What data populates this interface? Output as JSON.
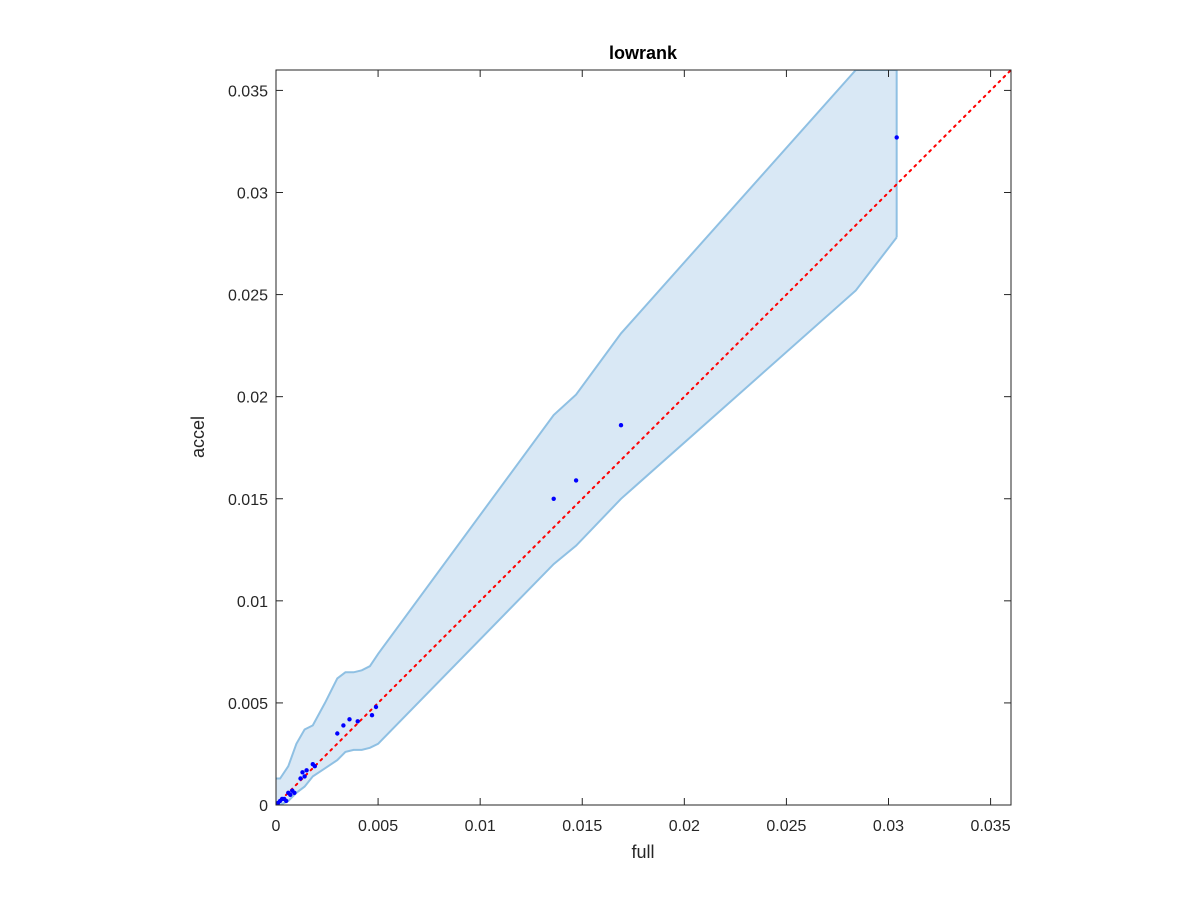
{
  "chart_data": {
    "type": "scatter",
    "title": "lowrank",
    "xlabel": "full",
    "ylabel": "accel",
    "xlim": [
      0,
      0.036
    ],
    "ylim": [
      0,
      0.036
    ],
    "grid": false,
    "xticks": [
      0,
      0.005,
      0.01,
      0.015,
      0.02,
      0.025,
      0.03,
      0.035
    ],
    "yticks": [
      0,
      0.005,
      0.01,
      0.015,
      0.02,
      0.025,
      0.03,
      0.035
    ],
    "xtick_labels": [
      "0",
      "0.005",
      "0.01",
      "0.015",
      "0.02",
      "0.025",
      "0.03",
      "0.035"
    ],
    "ytick_labels": [
      "0",
      "0.005",
      "0.01",
      "0.015",
      "0.02",
      "0.025",
      "0.03",
      "0.035"
    ],
    "points": {
      "x": [
        0.0001,
        0.0002,
        0.0003,
        0.0004,
        0.0005,
        0.0006,
        0.0007,
        0.0008,
        0.0009,
        0.0012,
        0.0013,
        0.0014,
        0.0015,
        0.0018,
        0.0019,
        0.003,
        0.0033,
        0.0036,
        0.004,
        0.0047,
        0.0049,
        0.0136,
        0.0147,
        0.0169,
        0.0304
      ],
      "y": [
        0.0001,
        0.0002,
        0.0003,
        0.0003,
        0.0002,
        0.0006,
        0.0005,
        0.0007,
        0.0006,
        0.0013,
        0.0016,
        0.0014,
        0.0017,
        0.002,
        0.0019,
        0.0035,
        0.0039,
        0.0042,
        0.0041,
        0.0044,
        0.0048,
        0.015,
        0.0159,
        0.0186,
        0.0327
      ],
      "color": "#0000ff"
    },
    "band": {
      "x": [
        0,
        0.0002,
        0.0006,
        0.001,
        0.0014,
        0.0018,
        0.0024,
        0.003,
        0.0034,
        0.0038,
        0.0042,
        0.0046,
        0.005,
        0.0136,
        0.0147,
        0.0169,
        0.0284,
        0.0304
      ],
      "upper": [
        0.0013,
        0.0013,
        0.0019,
        0.003,
        0.0037,
        0.0039,
        0.005,
        0.0062,
        0.0065,
        0.0065,
        0.0066,
        0.0068,
        0.0074,
        0.0191,
        0.0201,
        0.0231,
        0.036,
        0.036
      ],
      "lower": [
        0,
        0,
        0.0002,
        0.0006,
        0.0009,
        0.0014,
        0.0018,
        0.0022,
        0.0026,
        0.0027,
        0.0027,
        0.0028,
        0.003,
        0.0118,
        0.0127,
        0.015,
        0.0252,
        0.0278
      ],
      "fill_color": "#d9e8f5",
      "edge_color": "#8fc0e3"
    },
    "reference_line": {
      "x": [
        0,
        0.036
      ],
      "y": [
        0,
        0.036
      ],
      "color": "#ff0000",
      "style": "dotted"
    }
  }
}
